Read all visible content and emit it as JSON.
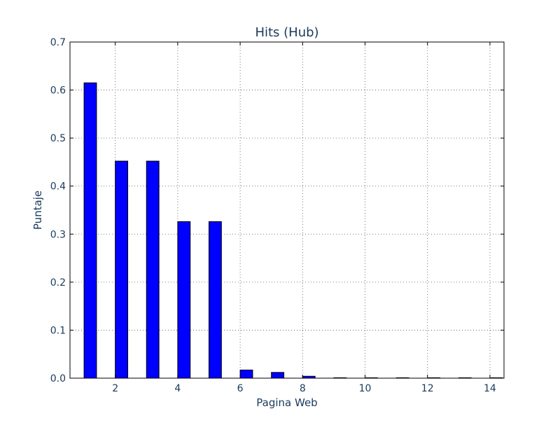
{
  "chart_data": {
    "type": "bar",
    "title": "Hits (Hub)",
    "xlabel": "Pagina Web",
    "ylabel": "Puntaje",
    "x": [
      1,
      2,
      3,
      4,
      5,
      6,
      7,
      8,
      9,
      10,
      11,
      12,
      13,
      14
    ],
    "values": [
      0.615,
      0.452,
      0.452,
      0.326,
      0.326,
      0.017,
      0.012,
      0.004,
      0.0005,
      0.0003,
      0.0002,
      0.0002,
      0.0002,
      0.0001
    ],
    "xlim": [
      0.55,
      14.45
    ],
    "ylim": [
      0,
      0.7
    ],
    "xticks": [
      2,
      4,
      6,
      8,
      10,
      12,
      14
    ],
    "xtick_labels": [
      "2",
      "4",
      "6",
      "8",
      "10",
      "12",
      "14"
    ],
    "yticks": [
      0,
      0.1,
      0.2,
      0.3,
      0.4,
      0.5,
      0.6,
      0.7
    ],
    "ytick_labels": [
      "0.0",
      "0.1",
      "0.2",
      "0.3",
      "0.4",
      "0.5",
      "0.6",
      "0.7"
    ],
    "bar_width": 0.4,
    "grid": true,
    "legend": "none",
    "colors": {
      "bar_fill": "#0000ff",
      "bar_edge": "#000000",
      "text": "#1a3a5c",
      "grid": "#555555",
      "axes": "#000000"
    }
  }
}
